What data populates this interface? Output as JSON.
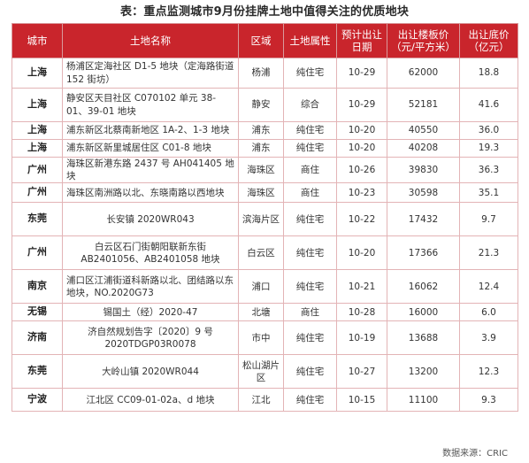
{
  "title": "表：重点监测城市9月份挂牌土地中值得关注的优质地块",
  "headers": [
    "城市",
    "土地名称",
    "区域",
    "土地属性",
    "预计出让日期",
    "出让楼板价（元/平方米）",
    "出让底价（亿元）"
  ],
  "rows": [
    {
      "city": "上海",
      "name": "杨浦区定海社区 D1-5 地块（定海路街道 152 街坊）",
      "area": "杨浦",
      "attr": "纯住宅",
      "date": "10-29",
      "price": "62000",
      "base": "18.8"
    },
    {
      "city": "上海",
      "name": "静安区天目社区 C070102 单元 38-01、39-01 地块",
      "area": "静安",
      "attr": "综合",
      "date": "10-29",
      "price": "52181",
      "base": "41.6"
    },
    {
      "city": "上海",
      "name": "浦东新区北蔡南新地区 1A-2、1-3 地块",
      "area": "浦东",
      "attr": "纯住宅",
      "date": "10-20",
      "price": "40550",
      "base": "36.0"
    },
    {
      "city": "上海",
      "name": "浦东新区新里城居住区 C01-8 地块",
      "area": "浦东",
      "attr": "纯住宅",
      "date": "10-20",
      "price": "40208",
      "base": "19.3"
    },
    {
      "city": "广州",
      "name": "海珠区新港东路 2437 号 AH041405 地块",
      "area": "海珠区",
      "attr": "商住",
      "date": "10-26",
      "price": "39830",
      "base": "36.3"
    },
    {
      "city": "广州",
      "name": "海珠区南洲路以北、东晓南路以西地块",
      "area": "海珠区",
      "attr": "商住",
      "date": "10-23",
      "price": "30598",
      "base": "35.1"
    },
    {
      "city": "东莞",
      "name": "长安镇 2020WR043",
      "area": "滨海片区",
      "attr": "纯住宅",
      "date": "10-22",
      "price": "17432",
      "base": "9.7"
    },
    {
      "city": "广州",
      "name": "白云区石门街朝阳联新东街 AB2401056、AB2401058 地块",
      "area": "白云区",
      "attr": "纯住宅",
      "date": "10-20",
      "price": "17366",
      "base": "21.3"
    },
    {
      "city": "南京",
      "name": "浦口区江浦街道科新路以北、团结路以东地块，NO.2020G73",
      "area": "浦口",
      "attr": "纯住宅",
      "date": "10-21",
      "price": "16062",
      "base": "12.4"
    },
    {
      "city": "无锡",
      "name": "锡国土（经）2020-47",
      "area": "北塘",
      "attr": "商住",
      "date": "10-28",
      "price": "16000",
      "base": "6.0"
    },
    {
      "city": "济南",
      "name": "济自然规划告字〔2020〕9 号 2020TDGP03R0078",
      "area": "市中",
      "attr": "纯住宅",
      "date": "10-19",
      "price": "13688",
      "base": "3.9"
    },
    {
      "city": "东莞",
      "name": "大岭山镇 2020WR044",
      "area": "松山湖片区",
      "attr": "纯住宅",
      "date": "10-27",
      "price": "13200",
      "base": "12.3"
    },
    {
      "city": "宁波",
      "name": "江北区 CC09-01-02a、d 地块",
      "area": "江北",
      "attr": "纯住宅",
      "date": "10-15",
      "price": "11100",
      "base": "9.3"
    }
  ],
  "source": "数据来源：CRIC"
}
